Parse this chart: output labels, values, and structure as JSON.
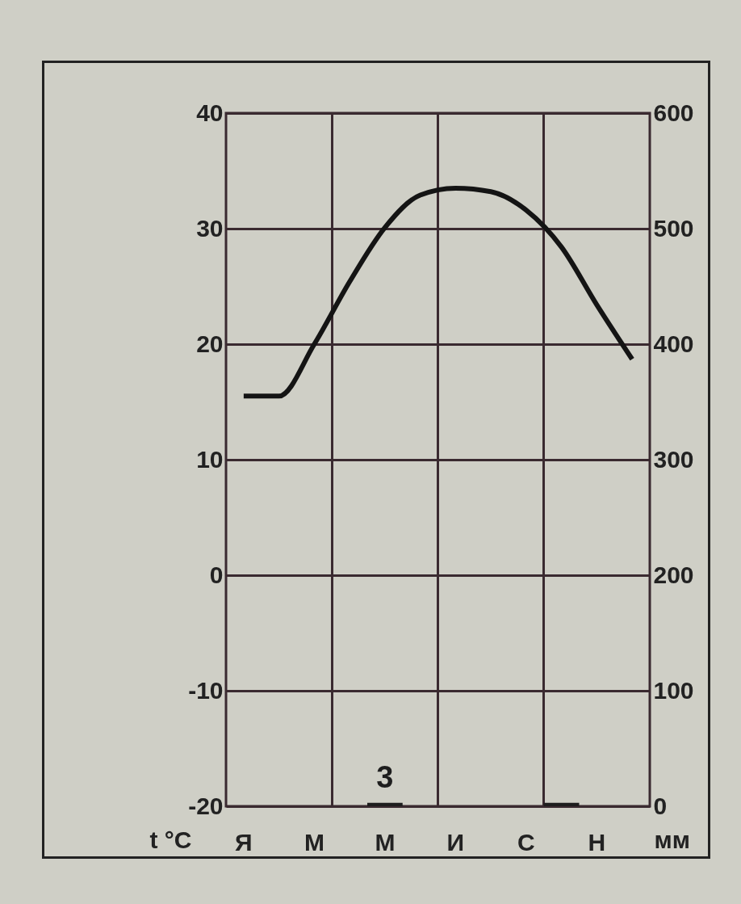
{
  "chart_data": {
    "type": "bar",
    "categories": [
      "Я",
      null,
      "М",
      null,
      "М",
      null,
      "И",
      null,
      "С",
      null,
      "Н",
      null
    ],
    "ylabel": "t °C",
    "y2label": "мм",
    "series": [
      {
        "axis": "y2",
        "color": "#1e1e1e",
        "values": [
          0,
          0,
          0,
          0,
          3,
          0,
          0,
          0,
          0,
          3,
          0,
          0
        ],
        "value_labels": [
          null,
          null,
          null,
          null,
          "3",
          null,
          null,
          null,
          null,
          null,
          null,
          null
        ]
      },
      {
        "type": "line",
        "axis": "y",
        "color": "#141414",
        "values": [
          15.5,
          15.5,
          20,
          25.4,
          30.1,
          32.9,
          33.5,
          33.2,
          31.6,
          28.4,
          23.4,
          18.7
        ]
      }
    ],
    "ylim": [
      -20,
      40
    ],
    "yticks": [
      -20,
      -10,
      0,
      10,
      20,
      30,
      40
    ],
    "y2lim": [
      0,
      600
    ],
    "y2ticks": [
      0,
      100,
      200,
      300,
      400,
      500,
      600
    ],
    "grid": true
  }
}
